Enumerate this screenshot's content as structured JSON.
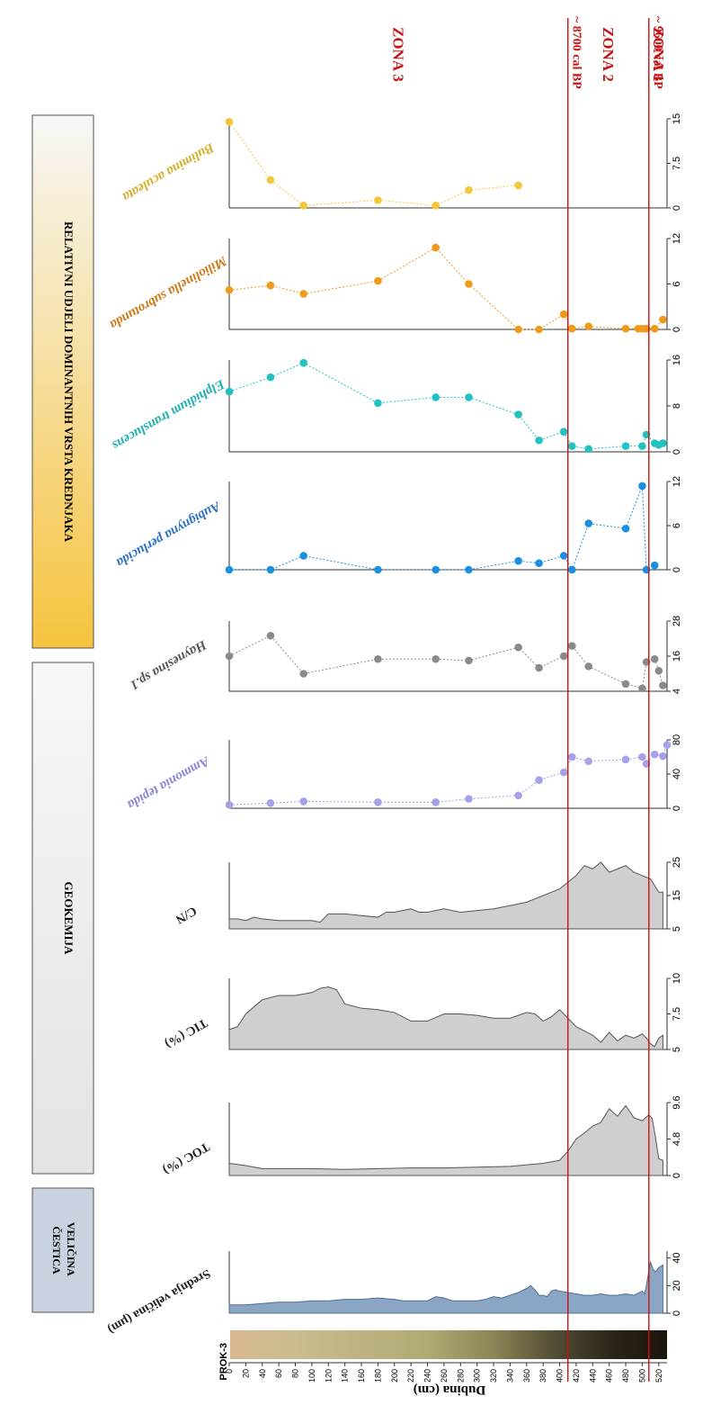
{
  "colors": {
    "zone_line": "#cc1111",
    "zone_text": "#c81414",
    "grain_fill": "#8aa6c4",
    "grain_stroke": "#4f6f92",
    "geo_fill": "#cfcfcf",
    "geo_stroke": "#555555",
    "section_box_grain": "#c8d2e0",
    "section_box_geo": "#e3e3e3",
    "section_box_fauna_top": "#f7f7f7",
    "section_box_fauna_bottom": "#f5c33e"
  },
  "core_label": "PROK-3",
  "depth_axis": {
    "label": "Dubina (cm)",
    "range": [
      0,
      530
    ],
    "ticks": [
      0,
      20,
      40,
      60,
      80,
      100,
      120,
      140,
      160,
      180,
      200,
      220,
      240,
      260,
      280,
      300,
      320,
      340,
      360,
      380,
      400,
      420,
      440,
      460,
      480,
      500,
      520
    ]
  },
  "sections": {
    "grain": "VELIČINA ČESTICA",
    "geochem": "GEOKEMIJA",
    "fauna": "RELATIVNI UDJELI DOMINANTNIH VRSTA KREDNJAKA"
  },
  "zones": {
    "boundaries": [
      {
        "depth": 410,
        "label": "~ 8700 cal BP"
      },
      {
        "depth": 508,
        "label": "~ 9600 cal BP"
      }
    ],
    "labels": [
      {
        "label": "ZONA 3",
        "depth": 205
      },
      {
        "label": "ZONA 2",
        "depth": 459
      },
      {
        "label": "ZONA 1",
        "depth": 520
      }
    ]
  },
  "chart_data": [
    {
      "type": "area",
      "name": "Srednja veličina (µm)",
      "title": "Srednja veličina (µm)",
      "xlim": [
        0,
        45
      ],
      "ticks": [
        0,
        20,
        40
      ],
      "depth": [
        0,
        20,
        40,
        60,
        80,
        100,
        120,
        140,
        160,
        180,
        200,
        210,
        220,
        230,
        240,
        250,
        260,
        270,
        280,
        290,
        300,
        310,
        320,
        330,
        340,
        350,
        360,
        365,
        370,
        375,
        380,
        385,
        390,
        395,
        400,
        410,
        420,
        430,
        440,
        450,
        460,
        470,
        480,
        490,
        500,
        503,
        505,
        508,
        510,
        513,
        516,
        520,
        525
      ],
      "values": [
        6,
        6,
        7,
        8,
        8,
        9,
        9,
        10,
        10,
        11,
        10,
        9,
        9,
        9,
        9,
        12,
        11,
        9,
        9,
        9,
        9,
        10,
        12,
        11,
        13,
        15,
        18,
        20,
        17,
        13,
        13,
        12,
        16,
        17,
        16,
        15,
        14,
        13,
        13,
        14,
        13,
        13,
        14,
        13,
        16,
        14,
        20,
        31,
        37,
        32,
        30,
        33,
        35
      ]
    },
    {
      "type": "area",
      "name": "TOC (%)",
      "title": "TOC (%)",
      "xlim": [
        0,
        9.6
      ],
      "ticks": [
        0,
        4.8,
        9.6
      ],
      "depth": [
        0,
        20,
        40,
        60,
        100,
        140,
        180,
        220,
        260,
        300,
        340,
        380,
        400,
        410,
        420,
        430,
        440,
        450,
        460,
        470,
        480,
        490,
        500,
        508,
        512,
        516,
        520,
        525
      ],
      "values": [
        1.6,
        1.3,
        0.9,
        0.9,
        0.9,
        0.8,
        0.9,
        1.0,
        1.0,
        1.1,
        1.2,
        1.6,
        2.0,
        3.2,
        4.8,
        5.6,
        6.5,
        7.0,
        8.8,
        7.8,
        9.2,
        7.6,
        7.2,
        8.0,
        7.5,
        5.0,
        2.2,
        2.0
      ]
    },
    {
      "type": "area",
      "name": "TIC (%)",
      "title": "TIC (%)",
      "xlim": [
        5,
        10
      ],
      "ticks": [
        5,
        7.5,
        10
      ],
      "depth": [
        0,
        10,
        20,
        40,
        60,
        80,
        100,
        110,
        120,
        130,
        140,
        160,
        180,
        200,
        220,
        240,
        260,
        280,
        300,
        320,
        340,
        360,
        370,
        380,
        390,
        400,
        410,
        420,
        430,
        440,
        450,
        460,
        470,
        480,
        490,
        500,
        505,
        510,
        515,
        520,
        525
      ],
      "values": [
        6.4,
        6.6,
        7.5,
        8.5,
        8.8,
        8.8,
        9.0,
        9.3,
        9.4,
        9.2,
        8.2,
        7.9,
        7.8,
        7.6,
        7.0,
        7.0,
        7.5,
        7.5,
        7.4,
        7.2,
        7.2,
        7.6,
        7.5,
        7.0,
        7.3,
        7.8,
        7.2,
        6.6,
        6.3,
        6.0,
        5.5,
        6.2,
        5.6,
        6.0,
        5.8,
        6.1,
        5.8,
        5.4,
        5.2,
        5.8,
        6.0
      ]
    },
    {
      "type": "area",
      "name": "C/N",
      "title": "C/N",
      "xlim": [
        5,
        25
      ],
      "ticks": [
        5,
        15,
        25
      ],
      "depth": [
        0,
        10,
        20,
        30,
        40,
        60,
        80,
        100,
        110,
        120,
        140,
        160,
        180,
        190,
        200,
        210,
        220,
        230,
        240,
        250,
        260,
        280,
        300,
        320,
        340,
        360,
        370,
        380,
        390,
        400,
        410,
        420,
        430,
        440,
        450,
        460,
        470,
        480,
        490,
        500,
        510,
        520,
        525
      ],
      "values": [
        8,
        8,
        7.5,
        8.5,
        8,
        7.5,
        7.5,
        7.5,
        7,
        9.5,
        9.5,
        9,
        8.5,
        10,
        10,
        10.5,
        11,
        10,
        10,
        10.5,
        11,
        10,
        10.5,
        11,
        12,
        13,
        14,
        15,
        16,
        17,
        19,
        21,
        24,
        23,
        25,
        22,
        23,
        24,
        22,
        21,
        20,
        16,
        16
      ]
    },
    {
      "type": "scatter",
      "name": "Ammonia tepida",
      "title": "Ammonia tepida",
      "xlim": [
        0,
        80
      ],
      "ticks": [
        0,
        40,
        80
      ],
      "depth": [
        0,
        50,
        90,
        180,
        250,
        290,
        350,
        375,
        405,
        415,
        435,
        480,
        500,
        505,
        515,
        525,
        530
      ],
      "values": [
        4,
        6,
        8,
        7,
        7,
        11,
        15,
        33,
        42,
        60,
        55,
        57,
        60,
        52,
        63,
        61,
        74
      ]
    },
    {
      "type": "scatter",
      "name": "Haynesina sp.1",
      "title": "Haynesina sp.1",
      "xlim": [
        4,
        28
      ],
      "ticks": [
        4,
        16,
        28
      ],
      "depth": [
        0,
        50,
        90,
        180,
        250,
        290,
        350,
        375,
        405,
        415,
        435,
        480,
        500,
        505,
        515,
        520,
        525
      ],
      "values": [
        16,
        23,
        10,
        15,
        15,
        14.5,
        19,
        12,
        16,
        19.5,
        12.5,
        6.5,
        5,
        14,
        15,
        11,
        6
      ]
    },
    {
      "type": "scatter",
      "name": "Aubignyna perlucida",
      "title": "Aubignyna perlucida",
      "xlim": [
        0,
        12
      ],
      "ticks": [
        0,
        6,
        12
      ],
      "depth": [
        0,
        50,
        90,
        180,
        250,
        290,
        350,
        375,
        405,
        415,
        435,
        480,
        500,
        505,
        515
      ],
      "values": [
        0,
        0,
        1.9,
        0,
        0,
        0,
        1.2,
        0.9,
        1.9,
        0,
        6.3,
        5.6,
        11.4,
        0,
        0.6
      ]
    },
    {
      "type": "scatter",
      "name": "Elphidium translucens",
      "title": "Elphidium translucens",
      "xlim": [
        0,
        16
      ],
      "ticks": [
        0,
        8,
        16
      ],
      "depth": [
        0,
        50,
        90,
        180,
        250,
        290,
        350,
        375,
        405,
        415,
        435,
        480,
        500,
        505,
        515,
        520,
        525
      ],
      "values": [
        10.5,
        13,
        15.5,
        8.5,
        9.5,
        9.5,
        6.5,
        2,
        3.5,
        1,
        0.5,
        1,
        1,
        3,
        1.5,
        1.2,
        1.5
      ]
    },
    {
      "type": "scatter",
      "name": "Miliolinella subrotunda",
      "title": "Miliolinella subrotunda",
      "xlim": [
        0,
        12
      ],
      "ticks": [
        0,
        6,
        12
      ],
      "depth": [
        0,
        50,
        90,
        180,
        250,
        290,
        350,
        375,
        405,
        415,
        435,
        480,
        495,
        500,
        505,
        515,
        525
      ],
      "values": [
        5.2,
        5.8,
        4.7,
        6.4,
        10.8,
        6,
        0,
        0,
        2,
        0.1,
        0.4,
        0.1,
        0.1,
        0.1,
        0.1,
        0.1,
        1.3
      ]
    },
    {
      "type": "scatter",
      "name": "Bulimina aculeata",
      "title": "Bulimina aculeata",
      "xlim": [
        0,
        15
      ],
      "ticks": [
        0,
        7.5,
        15
      ],
      "depth": [
        0,
        50,
        90,
        180,
        250,
        290,
        350
      ],
      "values": [
        14.5,
        4.7,
        0.4,
        1.3,
        0.4,
        3,
        3.8
      ]
    }
  ]
}
